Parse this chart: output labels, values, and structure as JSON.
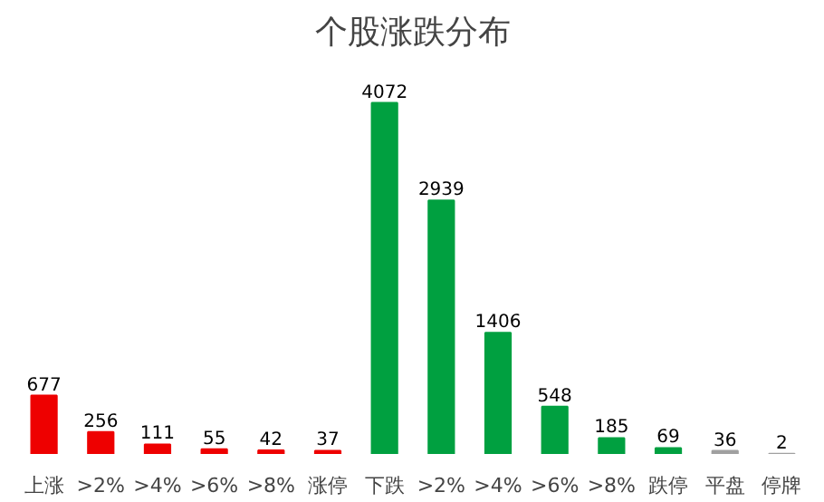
{
  "chart_data": {
    "type": "bar",
    "title": "个股涨跌分布",
    "categories": [
      "上涨",
      ">2%",
      ">4%",
      ">6%",
      ">8%",
      "涨停",
      "下跌",
      ">2%",
      ">4%",
      ">6%",
      ">8%",
      "跌停",
      "平盘",
      "停牌"
    ],
    "values": [
      677,
      256,
      111,
      55,
      42,
      37,
      4072,
      2939,
      1406,
      548,
      185,
      69,
      36,
      2
    ],
    "colors": [
      "#ee0000",
      "#ee0000",
      "#ee0000",
      "#ee0000",
      "#ee0000",
      "#ee0000",
      "#00a040",
      "#00a040",
      "#00a040",
      "#00a040",
      "#00a040",
      "#00a040",
      "#a0a0a0",
      "#a0a0a0"
    ],
    "data_labels": true
  }
}
